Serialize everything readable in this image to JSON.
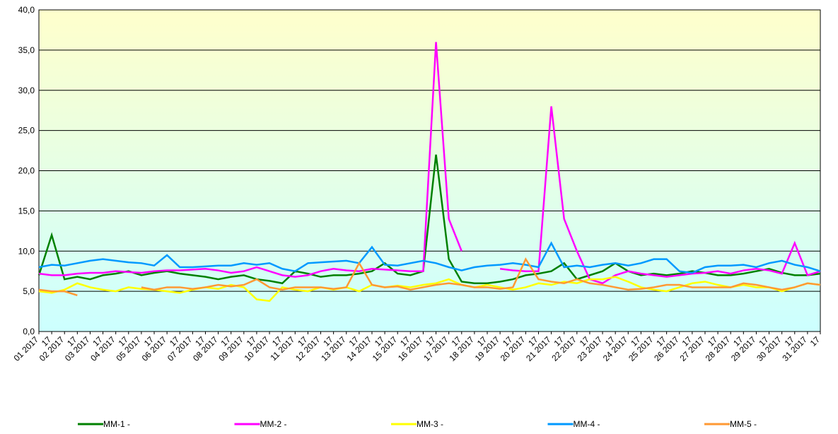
{
  "chart_data": {
    "type": "line",
    "categories": [
      "01 2017",
      "17",
      "02 2017",
      "17",
      "03 2017",
      "17",
      "04 2017",
      "17",
      "05 2017",
      "17",
      "06 2017",
      "17",
      "07 2017",
      "17",
      "08 2017",
      "17",
      "09 2017",
      "17",
      "10 2017",
      "17",
      "11 2017",
      "17",
      "12 2017",
      "17",
      "13 2017",
      "17",
      "14 2017",
      "17",
      "15 2017",
      "17",
      "16 2017",
      "17",
      "17 2017",
      "17",
      "18 2017",
      "17",
      "19 2017",
      "17",
      "20 2017",
      "17",
      "21 2017",
      "17",
      "22 2017",
      "17",
      "23 2017",
      "17",
      "24 2017",
      "17",
      "25 2017",
      "17",
      "26 2017",
      "17",
      "27 2017",
      "17",
      "28 2017",
      "17",
      "29 2017",
      "17",
      "30 2017",
      "17",
      "31 2017",
      "17"
    ],
    "series": [
      {
        "name": "MM-1 -",
        "color": "#008000",
        "values": [
          7,
          12,
          6.5,
          6.8,
          6.5,
          7,
          7.2,
          7.5,
          7,
          7.3,
          7.5,
          7.2,
          7,
          6.8,
          6.5,
          6.8,
          7,
          6.5,
          6.3,
          6,
          7.5,
          7.2,
          6.8,
          7,
          7,
          7.2,
          7.5,
          8.5,
          7.2,
          7,
          7.5,
          22,
          9,
          6.2,
          6,
          6,
          6.2,
          6.5,
          7,
          7.2,
          7.5,
          8.5,
          6.5,
          7,
          7.5,
          8.5,
          7.5,
          7,
          7.2,
          7,
          7.2,
          7.5,
          7.3,
          7,
          7,
          7.2,
          7.5,
          7.8,
          7.3,
          7,
          7,
          7.2
        ]
      },
      {
        "name": "MM-2 -",
        "color": "#ff00ff",
        "values": [
          7.2,
          7,
          7,
          7.2,
          7.3,
          7.3,
          7.5,
          7.4,
          7.3,
          7.5,
          7.6,
          7.6,
          7.7,
          7.8,
          7.6,
          7.3,
          7.5,
          8,
          7.5,
          7,
          6.8,
          7,
          7.5,
          7.8,
          7.6,
          7.5,
          7.8,
          7.7,
          7.6,
          7.5,
          7.5,
          36,
          14,
          10,
          null,
          null,
          7.8,
          7.6,
          7.5,
          7.5,
          28,
          14,
          10,
          6.5,
          6,
          7,
          7.5,
          7.2,
          7,
          6.8,
          7,
          7.2,
          7.3,
          7.5,
          7.2,
          7.6,
          7.8,
          7.6,
          7.2,
          11,
          7,
          7.5
        ]
      },
      {
        "name": "MM-3 -",
        "color": "#ffff00",
        "values": [
          5,
          4.8,
          5.2,
          6,
          5.5,
          5.2,
          5,
          5.5,
          5.3,
          5.2,
          5,
          4.8,
          5.2,
          5.5,
          5.3,
          5.8,
          5.5,
          4,
          3.8,
          5.5,
          5.2,
          5,
          5.5,
          5.2,
          5.5,
          5,
          5.8,
          5.5,
          5.7,
          5.5,
          5.8,
          6,
          6.5,
          5.8,
          5.5,
          5.8,
          5.5,
          5.2,
          5.5,
          6,
          5.8,
          6.2,
          6,
          6.5,
          6.5,
          6.8,
          6.2,
          5.5,
          5.2,
          5,
          5.5,
          6,
          6.2,
          5.8,
          5.5,
          5.8,
          5.5,
          5.5,
          5,
          5.5,
          6,
          5.8
        ]
      },
      {
        "name": "MM-4 -",
        "color": "#0099ff",
        "values": [
          8,
          8.3,
          8.2,
          8.5,
          8.8,
          9,
          8.8,
          8.6,
          8.5,
          8.2,
          9.5,
          8,
          8,
          8.1,
          8.2,
          8.2,
          8.5,
          8.3,
          8.5,
          7.8,
          7.5,
          8.5,
          8.6,
          8.7,
          8.8,
          8.5,
          10.5,
          8.3,
          8.2,
          8.5,
          8.8,
          8.5,
          8,
          7.6,
          8,
          8.2,
          8.3,
          8.5,
          8.3,
          8,
          11,
          8,
          8.2,
          8,
          8.3,
          8.5,
          8.2,
          8.5,
          9,
          9,
          7.5,
          7.3,
          8,
          8.2,
          8.2,
          8.3,
          8,
          8.5,
          8.8,
          8.3,
          8,
          7.5
        ]
      },
      {
        "name": "MM-5 -",
        "color": "#ff9933",
        "values": [
          5.2,
          5,
          5,
          4.5,
          null,
          null,
          null,
          null,
          5.5,
          5.2,
          5.5,
          5.5,
          5.3,
          5.5,
          5.8,
          5.6,
          5.8,
          6.5,
          5.5,
          5.2,
          5.5,
          5.5,
          5.5,
          5.3,
          5.5,
          8.5,
          5.8,
          5.5,
          5.6,
          5.2,
          5.5,
          5.8,
          6,
          5.8,
          5.5,
          5.5,
          5.3,
          5.5,
          9,
          6.5,
          6.2,
          6,
          6.5,
          6,
          5.8,
          5.5,
          5.2,
          5.3,
          5.5,
          5.8,
          5.8,
          5.5,
          5.5,
          5.5,
          5.5,
          6,
          5.8,
          5.5,
          5.2,
          5.5,
          6,
          5.8
        ]
      }
    ],
    "ylim": [
      0,
      40
    ],
    "yticks": [
      {
        "value": 0,
        "label": "0,0"
      },
      {
        "value": 5,
        "label": "5,0"
      },
      {
        "value": 10,
        "label": "10,0"
      },
      {
        "value": 15,
        "label": "15,0"
      },
      {
        "value": 20,
        "label": "20,0"
      },
      {
        "value": 25,
        "label": "25,0"
      },
      {
        "value": 30,
        "label": "30,0"
      },
      {
        "value": 35,
        "label": "35,0"
      },
      {
        "value": 40,
        "label": "40,0"
      }
    ],
    "grid": true,
    "legend": "bottom"
  }
}
